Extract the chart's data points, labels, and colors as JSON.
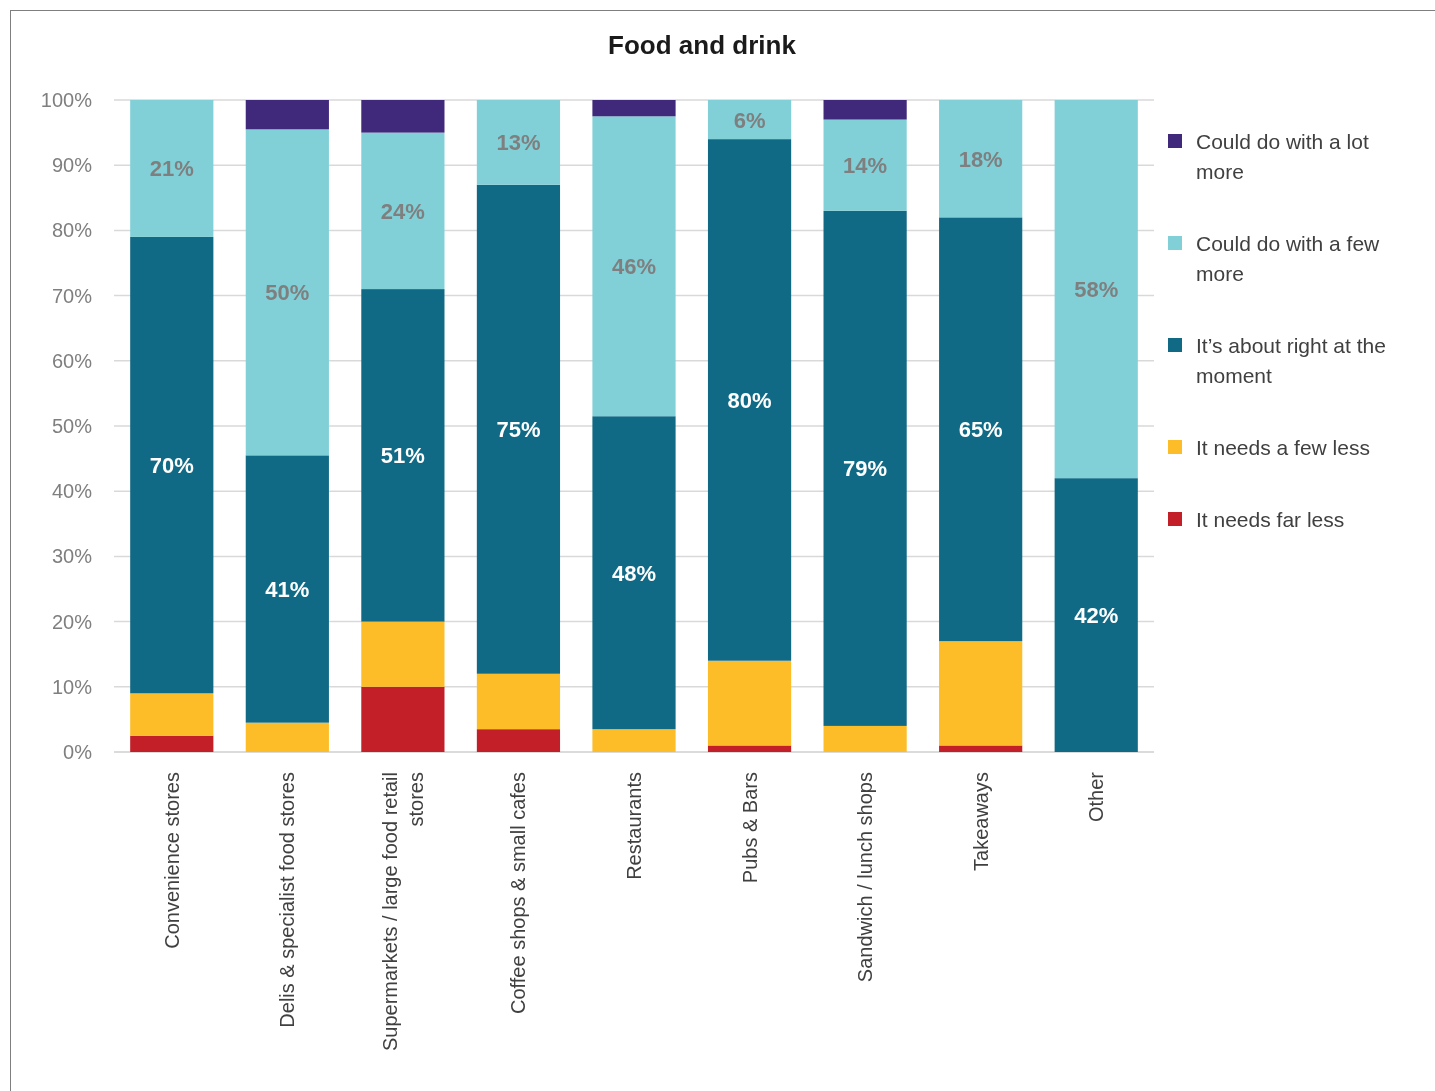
{
  "chart_data": {
    "type": "bar",
    "title": "Food and drink",
    "categories": [
      "Convenience stores",
      "Delis & specialist food stores",
      "Supermarkets / large food retail stores",
      "Coffee shops & small cafes",
      "Restaurants",
      "Pubs & Bars",
      "Sandwich / lunch shops",
      "Takeaways",
      "Other"
    ],
    "stacked": true,
    "series": [
      {
        "name": "It needs far less",
        "color": "#c21f28",
        "values": [
          2.5,
          0,
          10,
          3.5,
          0,
          1,
          0,
          1,
          0
        ]
      },
      {
        "name": "It needs a few less",
        "color": "#fcbd28",
        "values": [
          6.5,
          4.5,
          10,
          8.5,
          3.5,
          13,
          4,
          16,
          0
        ]
      },
      {
        "name": "It’s about right at the moment",
        "color": "#116a85",
        "values": [
          70,
          41,
          51,
          75,
          48,
          80,
          79,
          65,
          42
        ],
        "value_labels": [
          "70%",
          "41%",
          "51%",
          "75%",
          "48%",
          "80%",
          "79%",
          "65%",
          "42%"
        ]
      },
      {
        "name": "Could do with a few more",
        "color": "#81d0d8",
        "values": [
          21,
          50,
          24,
          13,
          46,
          6,
          14,
          18,
          58
        ],
        "value_labels": [
          "21%",
          "50%",
          "24%",
          "13%",
          "46%",
          "6%",
          "14%",
          "18%",
          "58%"
        ]
      },
      {
        "name": "Could do with a lot more",
        "color": "#40287a",
        "values": [
          0,
          4.5,
          5,
          0,
          2.5,
          0,
          3,
          0,
          0
        ]
      }
    ],
    "ylim": [
      0,
      100
    ],
    "yticks": [
      {
        "value": 0,
        "label": "0%"
      },
      {
        "value": 10,
        "label": "10%"
      },
      {
        "value": 20,
        "label": "20%"
      },
      {
        "value": 30,
        "label": "30%"
      },
      {
        "value": 40,
        "label": "40%"
      },
      {
        "value": 50,
        "label": "50%"
      },
      {
        "value": 60,
        "label": "60%"
      },
      {
        "value": 70,
        "label": "70%"
      },
      {
        "value": 80,
        "label": "80%"
      },
      {
        "value": 90,
        "label": "90%"
      },
      {
        "value": 100,
        "label": "100%"
      }
    ],
    "grid": "y",
    "legend": "right"
  }
}
